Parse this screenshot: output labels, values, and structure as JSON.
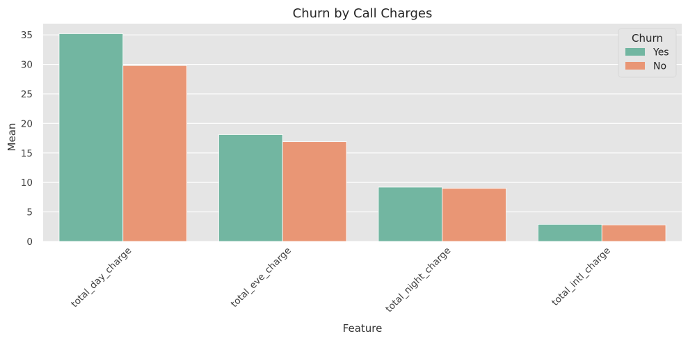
{
  "chart_data": {
    "type": "bar",
    "title": "Churn by Call Charges",
    "xlabel": "Feature",
    "ylabel": "Mean",
    "categories": [
      "total_day_charge",
      "total_eve_charge",
      "total_night_charge",
      "total_intl_charge"
    ],
    "series": [
      {
        "name": "Yes",
        "values": [
          35.2,
          18.1,
          9.2,
          2.9
        ],
        "color": "#72b6a1"
      },
      {
        "name": "No",
        "values": [
          29.8,
          16.9,
          9.0,
          2.8
        ],
        "color": "#e99675"
      }
    ],
    "ylim": [
      0,
      36.9
    ],
    "yticks": [
      0,
      5,
      10,
      15,
      20,
      25,
      30,
      35
    ],
    "legend": {
      "title": "Churn",
      "placement": "top-right"
    },
    "grid": true,
    "colors": {
      "plot_background": "#e5e5e5",
      "grid": "#ffffff",
      "page_background": "#ffffff"
    }
  }
}
